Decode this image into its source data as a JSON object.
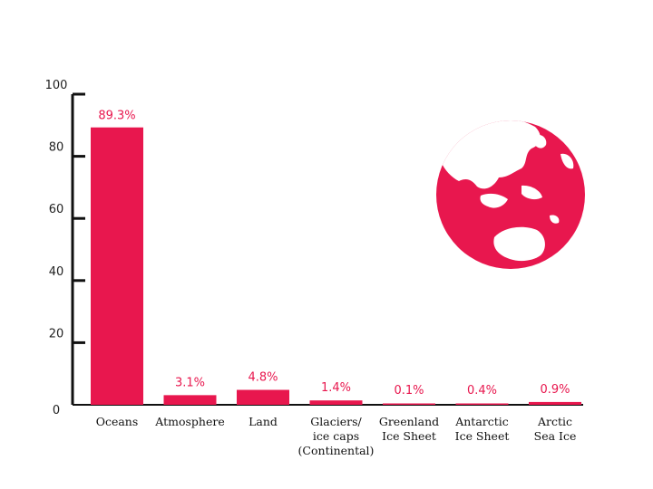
{
  "chart_data": {
    "type": "bar",
    "title": "",
    "xlabel": "",
    "ylabel": "",
    "ylim": [
      0,
      100
    ],
    "yticks": [
      "0",
      "20",
      "40",
      "60",
      "80",
      "100"
    ],
    "categories": [
      [
        "Oceans"
      ],
      [
        "Atmosphere"
      ],
      [
        "Land"
      ],
      [
        "Glaciers/",
        "ice caps",
        "(Continental)"
      ],
      [
        "Greenland",
        "Ice Sheet"
      ],
      [
        "Antarctic",
        "Ice Sheet"
      ],
      [
        "Arctic",
        "Sea Ice"
      ]
    ],
    "values": [
      89.3,
      3.1,
      4.8,
      1.4,
      0.1,
      0.4,
      0.9
    ],
    "value_labels": [
      "89.3%",
      "3.1%",
      "4.8%",
      "1.4%",
      "0.1%",
      "0.4%",
      "0.9%"
    ],
    "grid": false,
    "legend": "none"
  },
  "colors": {
    "bar": "#e8174e",
    "label": "#e8174e",
    "axis": "#111111",
    "globe": "#e8174e"
  },
  "decoration": {
    "icon": "globe-icon"
  }
}
